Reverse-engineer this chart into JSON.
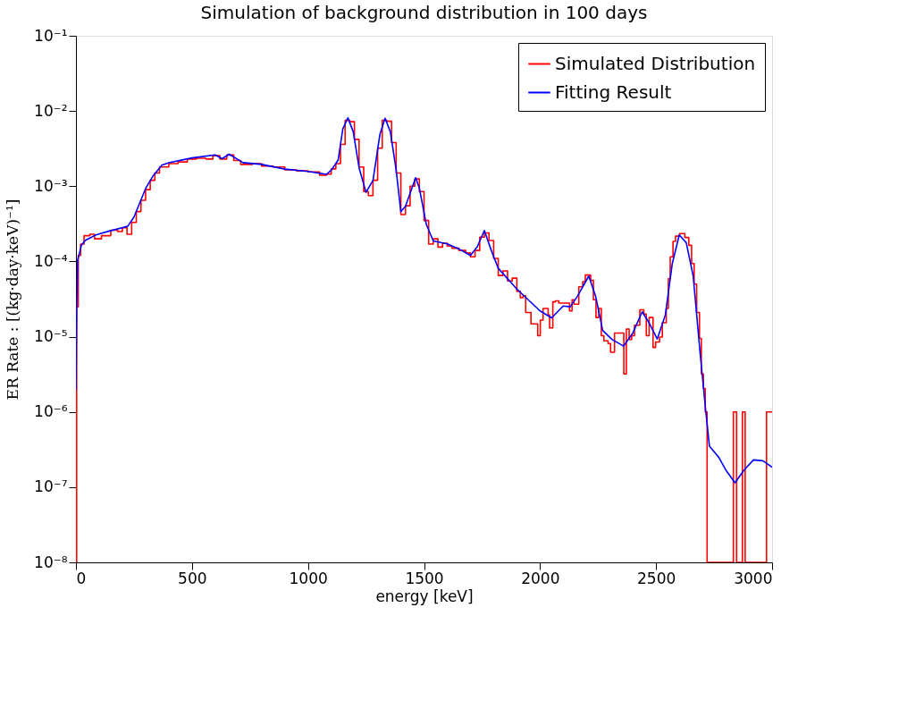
{
  "chart_data": {
    "type": "line",
    "title": "Simulation of background distribution in 100 days",
    "xlabel": "energy [keV]",
    "ylabel": "ER Rate : [(kg·day·keV)⁻¹]",
    "log": "y",
    "grid": false,
    "legend": "top right",
    "line_style": "solid",
    "marker": "none",
    "xlim": [
      0,
      3000
    ],
    "xticks": [
      0,
      500,
      1000,
      1500,
      2000,
      2500,
      3000
    ],
    "ylim": [
      1e-08,
      0.1
    ],
    "yticks": [
      {
        "value": 1e-08,
        "label": "10⁻⁸"
      },
      {
        "value": 1e-07,
        "label": "10⁻⁷"
      },
      {
        "value": 1e-06,
        "label": "10⁻⁶"
      },
      {
        "value": 1e-05,
        "label": "10⁻⁵"
      },
      {
        "value": 0.0001,
        "label": "10⁻⁴"
      },
      {
        "value": 0.001,
        "label": "10⁻³"
      },
      {
        "value": 0.01,
        "label": "10⁻²"
      },
      {
        "value": 0.1,
        "label": "10⁻¹"
      }
    ],
    "series": [
      {
        "name": "Simulated Distribution",
        "type": "step",
        "color": "#ff0000",
        "x": [
          0,
          3,
          10,
          20,
          35,
          60,
          80,
          110,
          150,
          180,
          200,
          220,
          240,
          260,
          280,
          300,
          320,
          340,
          360,
          400,
          440,
          480,
          520,
          560,
          590,
          620,
          650,
          680,
          710,
          760,
          800,
          850,
          900,
          950,
          1000,
          1050,
          1080,
          1100,
          1120,
          1140,
          1160,
          1180,
          1200,
          1220,
          1240,
          1260,
          1280,
          1300,
          1320,
          1340,
          1360,
          1380,
          1400,
          1420,
          1440,
          1460,
          1480,
          1500,
          1520,
          1540,
          1560,
          1580,
          1600,
          1620,
          1650,
          1680,
          1700,
          1720,
          1740,
          1760,
          1780,
          1800,
          1820,
          1840,
          1860,
          1880,
          1900,
          1915,
          1927,
          1938,
          1961,
          1990,
          2001,
          2013,
          2035,
          2041,
          2055,
          2066,
          2081,
          2104,
          2127,
          2138,
          2146,
          2167,
          2184,
          2195,
          2218,
          2230,
          2241,
          2253,
          2264,
          2275,
          2293,
          2304,
          2321,
          2361,
          2372,
          2384,
          2395,
          2407,
          2430,
          2447,
          2458,
          2470,
          2487,
          2498,
          2515,
          2527,
          2544,
          2553,
          2561,
          2573,
          2584,
          2601,
          2624,
          2641,
          2653,
          2664,
          2675,
          2687,
          2695,
          2704,
          2712,
          2720,
          2833,
          2847,
          2872,
          2884,
          2976,
          3000
        ],
        "values": [
          1e-08,
          2.5e-05,
          0.00012,
          0.00017,
          0.00022,
          0.00023,
          0.0002,
          0.00022,
          0.00026,
          0.00025,
          0.00028,
          0.00023,
          0.00033,
          0.00046,
          0.00065,
          0.0009,
          0.0012,
          0.0015,
          0.0018,
          0.002,
          0.0021,
          0.0023,
          0.00235,
          0.0023,
          0.00255,
          0.0023,
          0.0026,
          0.0022,
          0.00195,
          0.002,
          0.00185,
          0.0018,
          0.00165,
          0.0016,
          0.00155,
          0.0014,
          0.00145,
          0.0017,
          0.002,
          0.0036,
          0.0075,
          0.0072,
          0.0042,
          0.0018,
          0.00085,
          0.00075,
          0.0012,
          0.0032,
          0.0075,
          0.0073,
          0.0038,
          0.0015,
          0.00042,
          0.00055,
          0.001,
          0.00125,
          0.00085,
          0.00035,
          0.00017,
          0.0002,
          0.000155,
          0.000175,
          0.00016,
          0.00015,
          0.00014,
          0.00013,
          0.000115,
          0.00014,
          0.00021,
          0.00024,
          0.00019,
          0.00011,
          6.5e-05,
          7.5e-05,
          5.5e-05,
          6e-05,
          4e-05,
          3.3e-05,
          3.5e-05,
          2.1e-05,
          1.48e-05,
          1.03e-05,
          1.66e-05,
          2.37e-05,
          1.94e-05,
          1.31e-05,
          2.9e-05,
          3e-05,
          2.8e-05,
          2.8e-05,
          2.2e-05,
          3.1e-05,
          2.7e-05,
          4.6e-05,
          5.4e-05,
          6.6e-05,
          5.6e-05,
          3.1e-05,
          1.8e-05,
          2.37e-05,
          1.03e-05,
          8.8e-06,
          8.1e-06,
          6.2e-06,
          1.12e-05,
          3.2e-06,
          1.26e-05,
          9.2e-06,
          1.03e-05,
          1.42e-05,
          2.28e-05,
          2e-05,
          1.03e-05,
          1.8e-05,
          7.2e-06,
          8.5e-06,
          9.9e-06,
          1.53e-05,
          2.37e-05,
          5.9e-05,
          0.000115,
          0.000185,
          0.000217,
          0.000235,
          0.000208,
          0.000164,
          9.4e-05,
          5e-05,
          2.1e-05,
          9.5e-06,
          3.2e-06,
          2.05e-06,
          1e-06,
          1e-08,
          1e-06,
          1e-08,
          1e-06,
          1e-08,
          1e-06,
          1e-06
        ]
      },
      {
        "name": "Fitting Result",
        "type": "line",
        "color": "#0000ff",
        "x": [
          0,
          3,
          7,
          24,
          41,
          86,
          144,
          223,
          250,
          300,
          330,
          370,
          400,
          500,
          600,
          630,
          660,
          720,
          800,
          900,
          1000,
          1080,
          1100,
          1130,
          1150,
          1172,
          1195,
          1220,
          1250,
          1280,
          1310,
          1332,
          1355,
          1380,
          1400,
          1420,
          1464,
          1480,
          1510,
          1540,
          1600,
          1650,
          1700,
          1730,
          1760,
          1790,
          1820,
          1900,
          2000,
          2050,
          2100,
          2130,
          2160,
          2210,
          2240,
          2270,
          2310,
          2360,
          2400,
          2440,
          2470,
          2505,
          2540,
          2570,
          2600,
          2630,
          2660,
          2690,
          2715,
          2730,
          2770,
          2800,
          2840,
          2880,
          2920,
          2960,
          3000
        ],
        "values": [
          2e-06,
          2e-05,
          0.000103,
          0.000166,
          0.000191,
          0.000225,
          0.000254,
          0.000293,
          0.00039,
          0.00093,
          0.00134,
          0.0019,
          0.00205,
          0.00238,
          0.00261,
          0.00232,
          0.00266,
          0.00206,
          0.00195,
          0.00169,
          0.00157,
          0.00144,
          0.00163,
          0.00223,
          0.0058,
          0.0081,
          0.0053,
          0.00177,
          0.00083,
          0.00119,
          0.0049,
          0.008,
          0.0053,
          0.00163,
          0.00046,
          0.00054,
          0.0013,
          0.00094,
          0.00031,
          0.000187,
          0.000171,
          0.000147,
          0.00012,
          0.000158,
          0.000258,
          0.00014,
          8.1e-05,
          4.3e-05,
          2.2e-05,
          1.78e-05,
          2.56e-05,
          2.5e-05,
          3.4e-05,
          6.4e-05,
          3.4e-05,
          1.21e-05,
          9.2e-06,
          7.5e-06,
          1.12e-05,
          2.14e-05,
          1.53e-05,
          9.3e-06,
          1.95e-05,
          9.4e-05,
          0.000225,
          0.000178,
          6.4e-05,
          6e-06,
          9.7e-07,
          3.5e-07,
          2.5e-07,
          1.7e-07,
          1.14e-07,
          1.7e-07,
          2.3e-07,
          2.24e-07,
          1.84e-07
        ]
      }
    ]
  }
}
